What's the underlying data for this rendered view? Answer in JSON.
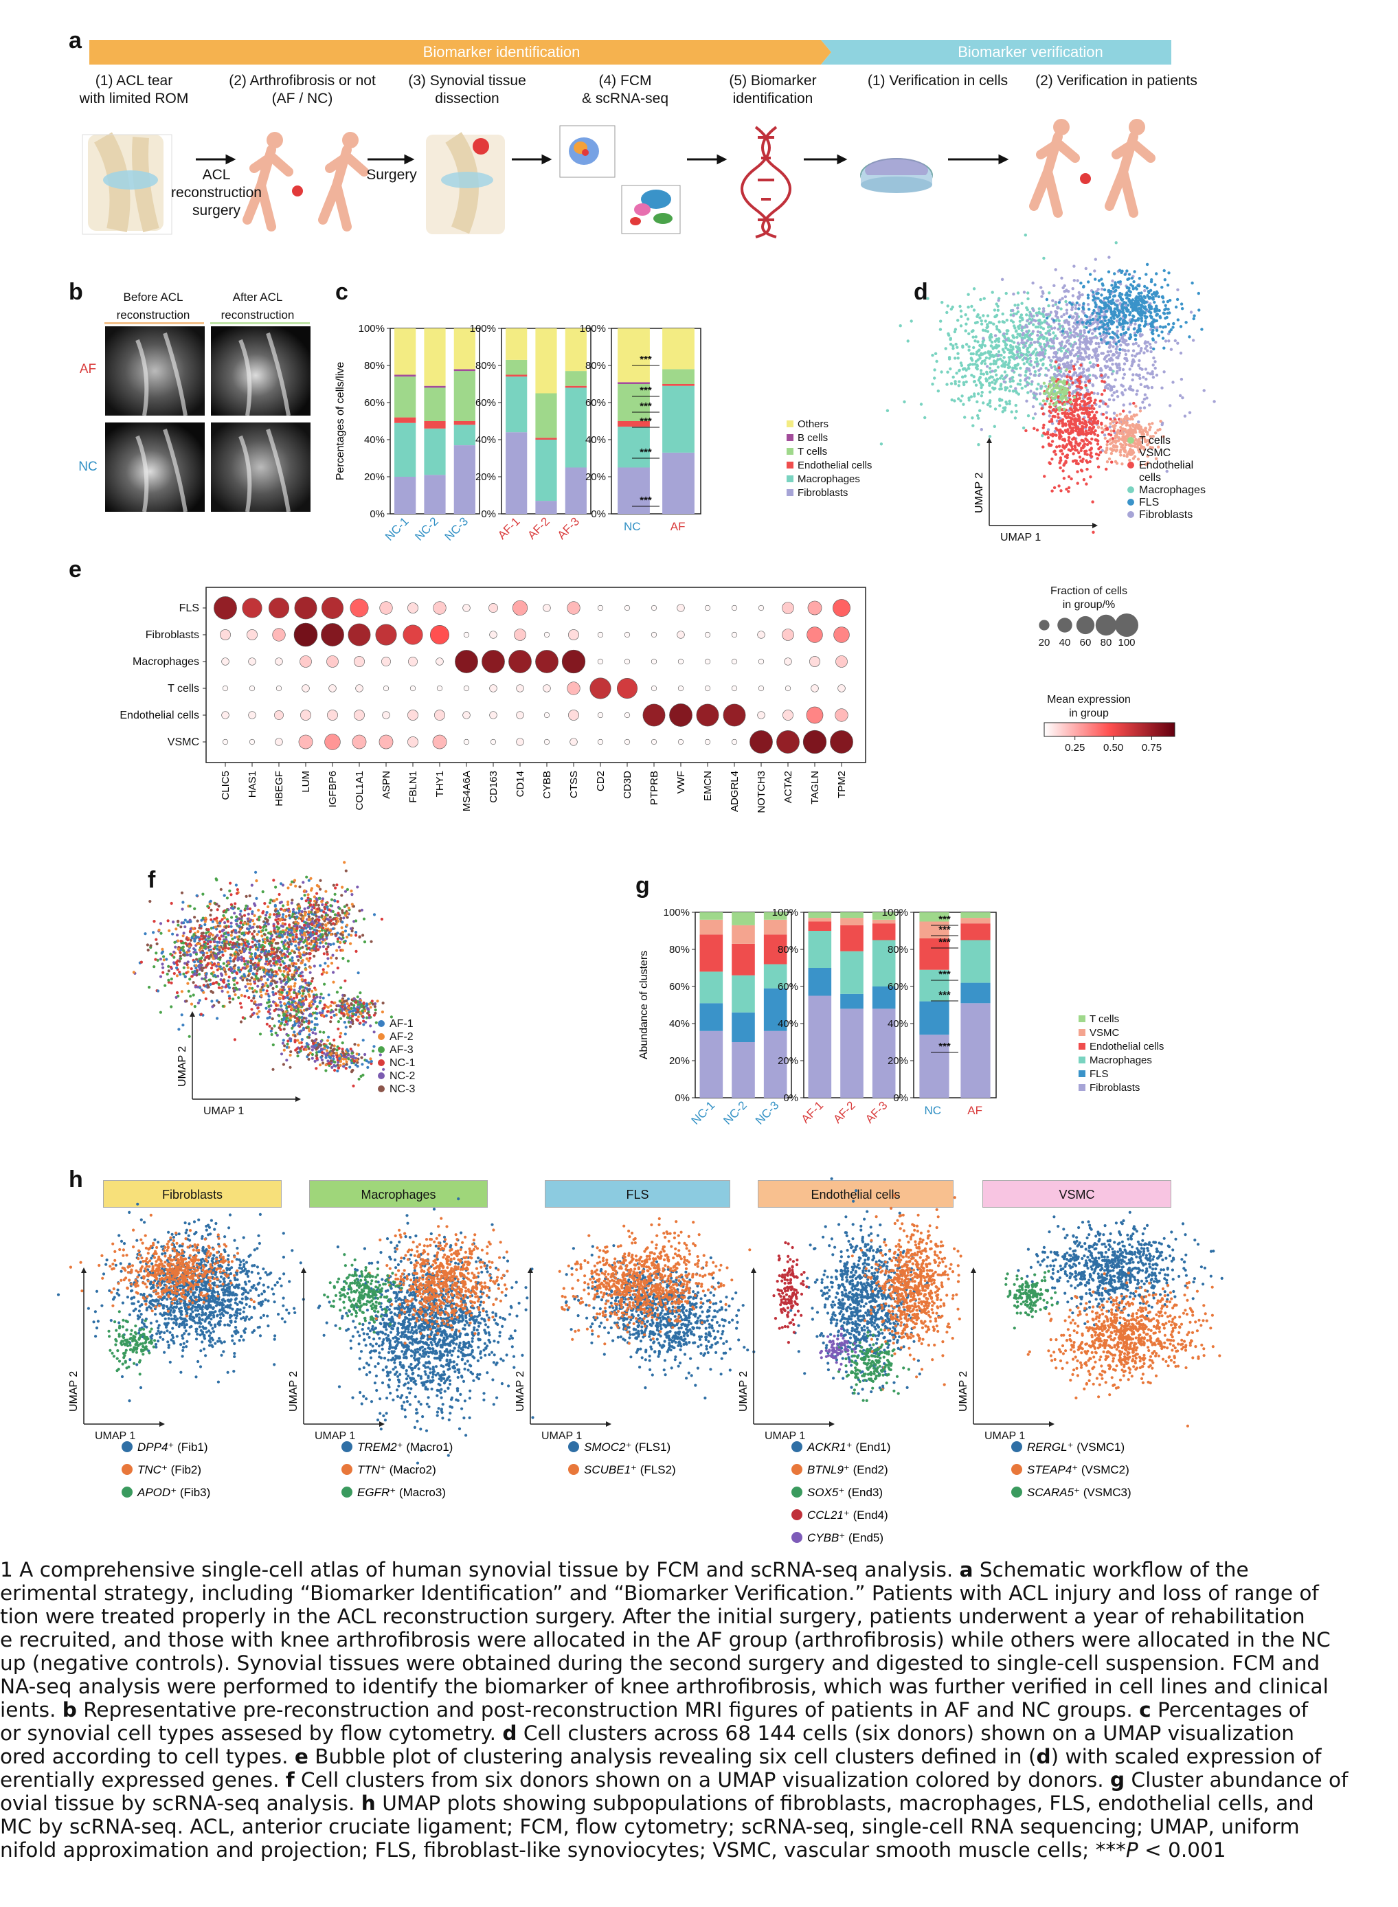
{
  "panel_a": {
    "letter": "a",
    "bar_left": "Biomarker identification",
    "bar_right": "Biomarker verification",
    "steps": [
      {
        "line1": "(1) ACL tear",
        "line2": "with limited ROM"
      },
      {
        "line1": "(2) Arthrofibrosis or not",
        "line2": "(AF / NC)"
      },
      {
        "line1": "(3) Synovial tissue",
        "line2": "dissection"
      },
      {
        "line1": "(4) FCM",
        "line2": "& scRNA-seq"
      },
      {
        "line1": "(5) Biomarker",
        "line2": "identification"
      },
      {
        "line1": "(1) Verification in cells",
        "line2": ""
      },
      {
        "line1": "(2) Verification in patients",
        "line2": ""
      }
    ],
    "arrow1_text": [
      "ACL",
      "reconstruction",
      "surgery"
    ],
    "arrow2_text": "Surgery",
    "colors": {
      "left": "#f5b24f",
      "right": "#8fd3df"
    }
  },
  "panel_b": {
    "letter": "b",
    "col1": [
      "Before ACL",
      "reconstruction"
    ],
    "col2": [
      "After ACL",
      "reconstruction"
    ],
    "row1": "AF",
    "row2": "NC"
  },
  "panel_c": {
    "letter": "c",
    "ylabel": "Percentages of cells/live",
    "yticks": [
      "0%",
      "20%",
      "40%",
      "60%",
      "80%",
      "100%"
    ],
    "legend": [
      "Others",
      "B cells",
      "T cells",
      "Endothelial cells",
      "Macrophages",
      "Fibroblasts"
    ],
    "sig": "***",
    "colors": [
      "#f3ec83",
      "#a24c9a",
      "#9fd88b",
      "#ef4d4d",
      "#79d3c0",
      "#a6a4d6"
    ]
  },
  "chart_data": [
    {
      "type": "bar",
      "title": "",
      "ylabel": "Percentages of cells/live",
      "ylim": [
        0,
        100
      ],
      "stacked": true,
      "groups": [
        {
          "categories": [
            "NC-1",
            "NC-2",
            "NC-3"
          ],
          "series": [
            {
              "name": "Fibroblasts",
              "values": [
                20,
                21,
                37
              ]
            },
            {
              "name": "Macrophages",
              "values": [
                29,
                25,
                11
              ]
            },
            {
              "name": "Endothelial cells",
              "values": [
                3,
                4,
                2
              ]
            },
            {
              "name": "T cells",
              "values": [
                22,
                18,
                27
              ]
            },
            {
              "name": "B cells",
              "values": [
                1,
                1,
                1
              ]
            },
            {
              "name": "Others",
              "values": [
                25,
                31,
                22
              ]
            }
          ]
        },
        {
          "categories": [
            "AF-1",
            "AF-2",
            "AF-3"
          ],
          "series": [
            {
              "name": "Fibroblasts",
              "values": [
                44,
                7,
                25
              ]
            },
            {
              "name": "Macrophages",
              "values": [
                30,
                33,
                43
              ]
            },
            {
              "name": "Endothelial cells",
              "values": [
                1,
                1,
                1
              ]
            },
            {
              "name": "T cells",
              "values": [
                8,
                24,
                8
              ]
            },
            {
              "name": "B cells",
              "values": [
                0,
                0,
                0
              ]
            },
            {
              "name": "Others",
              "values": [
                17,
                35,
                23
              ]
            }
          ]
        },
        {
          "categories": [
            "NC",
            "AF"
          ],
          "series": [
            {
              "name": "Fibroblasts",
              "values": [
                25,
                33
              ]
            },
            {
              "name": "Macrophages",
              "values": [
                22,
                36
              ]
            },
            {
              "name": "Endothelial cells",
              "values": [
                3,
                1
              ]
            },
            {
              "name": "T cells",
              "values": [
                20,
                8
              ]
            },
            {
              "name": "B cells",
              "values": [
                1,
                0
              ]
            },
            {
              "name": "Others",
              "values": [
                29,
                22
              ]
            }
          ]
        }
      ]
    },
    {
      "type": "scatter",
      "title": "",
      "subtype": "bubble",
      "rows": [
        "FLS",
        "Fibroblasts",
        "Macrophages",
        "T cells",
        "Endothelial cells",
        "VSMC"
      ],
      "genes": [
        "CLIC5",
        "HAS1",
        "HBEGF",
        "LUM",
        "IGFBP6",
        "COL1A1",
        "ASPN",
        "FBLN1",
        "THY1",
        "MS4A6A",
        "CD163",
        "CD14",
        "CYBB",
        "CTSS",
        "CD2",
        "CD3D",
        "PTPRB",
        "VWF",
        "EMCN",
        "ADGRL4",
        "NOTCH3",
        "ACTA2",
        "TAGLN",
        "TPM2"
      ],
      "size_legend_title": [
        "Fraction of cells",
        "in group/%"
      ],
      "size_legend": [
        20,
        40,
        60,
        80,
        100
      ],
      "color_legend_title": [
        "Mean expression",
        "in group"
      ],
      "color_ticks": [
        0.25,
        0.5,
        0.75
      ],
      "expression": [
        [
          0.85,
          0.7,
          0.75,
          0.8,
          0.75,
          0.45,
          0.15,
          0.1,
          0.15,
          0.05,
          0.1,
          0.25,
          0.05,
          0.2,
          0.02,
          0.02,
          0.02,
          0.05,
          0.02,
          0.02,
          0.02,
          0.15,
          0.25,
          0.45
        ],
        [
          0.1,
          0.1,
          0.2,
          0.95,
          0.9,
          0.8,
          0.7,
          0.6,
          0.5,
          0.02,
          0.05,
          0.15,
          0.02,
          0.1,
          0.02,
          0.02,
          0.02,
          0.05,
          0.02,
          0.02,
          0.05,
          0.15,
          0.35,
          0.35
        ],
        [
          0.05,
          0.05,
          0.05,
          0.15,
          0.15,
          0.1,
          0.08,
          0.08,
          0.05,
          0.9,
          0.88,
          0.85,
          0.85,
          0.9,
          0.02,
          0.02,
          0.02,
          0.02,
          0.02,
          0.02,
          0.02,
          0.05,
          0.1,
          0.15
        ],
        [
          0.02,
          0.02,
          0.02,
          0.05,
          0.05,
          0.05,
          0.02,
          0.02,
          0.02,
          0.02,
          0.05,
          0.05,
          0.05,
          0.2,
          0.7,
          0.65,
          0.02,
          0.02,
          0.02,
          0.02,
          0.02,
          0.02,
          0.05,
          0.05
        ],
        [
          0.05,
          0.05,
          0.1,
          0.1,
          0.1,
          0.1,
          0.05,
          0.1,
          0.1,
          0.05,
          0.05,
          0.05,
          0.02,
          0.1,
          0.02,
          0.02,
          0.85,
          0.9,
          0.85,
          0.85,
          0.05,
          0.1,
          0.35,
          0.2
        ],
        [
          0.02,
          0.02,
          0.05,
          0.2,
          0.3,
          0.2,
          0.2,
          0.1,
          0.2,
          0.02,
          0.02,
          0.05,
          0.02,
          0.05,
          0.02,
          0.02,
          0.02,
          0.02,
          0.02,
          0.02,
          0.9,
          0.85,
          0.92,
          0.9
        ]
      ],
      "fraction": [
        [
          95,
          70,
          75,
          90,
          85,
          60,
          30,
          20,
          30,
          10,
          15,
          40,
          10,
          30,
          5,
          5,
          5,
          10,
          5,
          5,
          5,
          25,
          35,
          55
        ],
        [
          20,
          20,
          30,
          100,
          95,
          90,
          80,
          70,
          65,
          5,
          10,
          25,
          5,
          20,
          5,
          5,
          5,
          10,
          5,
          5,
          10,
          25,
          45,
          45
        ],
        [
          10,
          10,
          10,
          25,
          25,
          20,
          15,
          15,
          10,
          95,
          95,
          95,
          95,
          98,
          5,
          5,
          5,
          5,
          5,
          5,
          5,
          10,
          20,
          25
        ],
        [
          5,
          5,
          5,
          10,
          10,
          10,
          5,
          5,
          5,
          5,
          10,
          10,
          10,
          30,
          80,
          75,
          5,
          5,
          5,
          5,
          5,
          5,
          10,
          10
        ],
        [
          10,
          10,
          15,
          20,
          20,
          20,
          10,
          20,
          20,
          10,
          10,
          10,
          5,
          20,
          5,
          5,
          90,
          95,
          90,
          90,
          10,
          20,
          50,
          30
        ],
        [
          5,
          5,
          10,
          35,
          45,
          35,
          35,
          20,
          35,
          5,
          5,
          10,
          5,
          10,
          5,
          5,
          5,
          5,
          5,
          5,
          95,
          95,
          98,
          95
        ]
      ]
    },
    {
      "type": "bar",
      "title": "",
      "ylabel": "Abundance of clusters",
      "ylim": [
        0,
        100
      ],
      "stacked": true,
      "groups": [
        {
          "categories": [
            "NC-1",
            "NC-2",
            "NC-3"
          ],
          "series": [
            {
              "name": "Fibroblasts",
              "values": [
                36,
                30,
                36
              ]
            },
            {
              "name": "FLS",
              "values": [
                15,
                16,
                23
              ]
            },
            {
              "name": "Macrophages",
              "values": [
                17,
                20,
                13
              ]
            },
            {
              "name": "Endothelial cells",
              "values": [
                20,
                17,
                16
              ]
            },
            {
              "name": "VSMC",
              "values": [
                8,
                10,
                8
              ]
            },
            {
              "name": "T cells",
              "values": [
                4,
                7,
                4
              ]
            }
          ]
        },
        {
          "categories": [
            "AF-1",
            "AF-2",
            "AF-3"
          ],
          "series": [
            {
              "name": "Fibroblasts",
              "values": [
                55,
                48,
                48
              ]
            },
            {
              "name": "FLS",
              "values": [
                15,
                8,
                12
              ]
            },
            {
              "name": "Macrophages",
              "values": [
                20,
                23,
                25
              ]
            },
            {
              "name": "Endothelial cells",
              "values": [
                5,
                14,
                9
              ]
            },
            {
              "name": "VSMC",
              "values": [
                2,
                4,
                2
              ]
            },
            {
              "name": "T cells",
              "values": [
                3,
                3,
                4
              ]
            }
          ]
        },
        {
          "categories": [
            "NC",
            "AF"
          ],
          "series": [
            {
              "name": "Fibroblasts",
              "values": [
                34,
                51
              ]
            },
            {
              "name": "FLS",
              "values": [
                18,
                11
              ]
            },
            {
              "name": "Macrophages",
              "values": [
                17,
                23
              ]
            },
            {
              "name": "Endothelial cells",
              "values": [
                17,
                9
              ]
            },
            {
              "name": "VSMC",
              "values": [
                9,
                3
              ]
            },
            {
              "name": "T cells",
              "values": [
                5,
                3
              ]
            }
          ]
        }
      ]
    }
  ],
  "panel_d": {
    "letter": "d",
    "xlabel": "UMAP 1",
    "ylabel": "UMAP 2",
    "legend": [
      "T cells",
      "VSMC",
      "Endothelial",
      "cells",
      "Macrophages",
      "FLS",
      "Fibroblasts"
    ],
    "colors": {
      "T cells": "#9fd88b",
      "VSMC": "#f4a48f",
      "Endothelial": "#ef4d4d",
      "Macrophages": "#79d3c0",
      "FLS": "#3a93c9",
      "Fibroblasts": "#a6a4d6"
    }
  },
  "panel_e": {
    "letter": "e"
  },
  "panel_f": {
    "letter": "f",
    "xlabel": "UMAP 1",
    "ylabel": "UMAP 2",
    "legend": [
      "AF-1",
      "AF-2",
      "AF-3",
      "NC-1",
      "NC-2",
      "NC-3"
    ],
    "colors": [
      "#3a7fc1",
      "#f08a36",
      "#4aa34a",
      "#d93b3b",
      "#7b5bb0",
      "#8c564b"
    ]
  },
  "panel_g": {
    "letter": "g",
    "ylabel": "Abundance of clusters",
    "yticks": [
      "0%",
      "20%",
      "40%",
      "60%",
      "80%",
      "100%"
    ],
    "legend": [
      "T cells",
      "VSMC",
      "Endothelial cells",
      "Macrophages",
      "FLS",
      "Fibroblasts"
    ],
    "colors": [
      "#9fd88b",
      "#f4a48f",
      "#ef4d4d",
      "#79d3c0",
      "#3a93c9",
      "#a6a4d6"
    ],
    "sig": "***"
  },
  "panel_h": {
    "letter": "h",
    "xlabel": "UMAP 1",
    "ylabel": "UMAP 2",
    "groups": [
      {
        "title": "Fibroblasts",
        "color": "#f7e07a",
        "legend": [
          [
            "DPP4",
            "⁺ (Fib1)"
          ],
          [
            "TNC",
            "⁺ (Fib2)"
          ],
          [
            "APOD",
            "⁺ (Fib3)"
          ]
        ]
      },
      {
        "title": "Macrophages",
        "color": "#9fd67a",
        "legend": [
          [
            "TREM2",
            "⁺ (Macro1)"
          ],
          [
            "TTN",
            "⁺ (Macro2)"
          ],
          [
            "EGFR",
            "⁺ (Macro3)"
          ]
        ]
      },
      {
        "title": "FLS",
        "color": "#8ccbe0",
        "legend": [
          [
            "SMOC2",
            "⁺ (FLS1)"
          ],
          [
            "SCUBE1",
            "⁺ (FLS2)"
          ]
        ]
      },
      {
        "title": "Endothelial cells",
        "color": "#f8c08f",
        "legend": [
          [
            "ACKR1",
            "⁺ (End1)"
          ],
          [
            "BTNL9",
            "⁺ (End2)"
          ],
          [
            "SOX5",
            "⁺ (End3)"
          ],
          [
            "CCL21",
            "⁺ (End4)"
          ],
          [
            "CYBB",
            "⁺ (End5)"
          ]
        ]
      },
      {
        "title": "VSMC",
        "color": "#f8c5e2",
        "legend": [
          [
            "RERGL",
            "⁺ (VSMC1)"
          ],
          [
            "STEAP4",
            "⁺ (VSMC2)"
          ],
          [
            "SCARA5",
            "⁺ (VSMC3)"
          ]
        ]
      }
    ],
    "dot_colors": [
      "#2f6fa5",
      "#e8773a",
      "#3a9a5e",
      "#c0303a",
      "#7d5bb8"
    ]
  },
  "caption": {
    "lines": [
      {
        "pre": "1  A comprehensive single-cell atlas of human synovial tissue by FCM and scRNA-seq analysis. ",
        "b": "a",
        "post": " Schematic workflow of the"
      },
      {
        "pre": "erimental strategy, including “Biomarker Identification” and “Biomarker Verification.” Patients with ACL injury and loss of range of",
        "b": "",
        "post": ""
      },
      {
        "pre": "tion were treated properly in the ACL reconstruction surgery. After the initial surgery, patients underwent a year of rehabilitation",
        "b": "",
        "post": ""
      },
      {
        "pre": "e recruited, and those with knee arthrofibrosis were allocated in the AF group (arthrofibrosis) while others were allocated in the NC",
        "b": "",
        "post": ""
      },
      {
        "pre": "up (negative controls). Synovial tissues were obtained during the second surgery and digested to single-cell suspension. FCM and",
        "b": "",
        "post": ""
      },
      {
        "pre": "NA-seq analysis were performed to identify the biomarker of knee arthrofibrosis, which was further verified in cell lines and clinical",
        "b": "",
        "post": ""
      },
      {
        "pre": "ients. ",
        "b": "b",
        "post": " Representative pre-reconstruction and post-reconstruction MRI figures of patients in AF and NC groups. "
      },
      {
        "pre": "or synovial cell types assesed by flow cytometry. ",
        "b": "d",
        "post": " Cell clusters across 68 144 cells (six donors) shown on a UMAP visualization"
      },
      {
        "pre": "ored according to cell types. ",
        "b": "e",
        "post": " Bubble plot of clustering analysis revealing six cell clusters defined in ("
      },
      {
        "pre": "erentially expressed genes. ",
        "b": "f",
        "post": " Cell clusters from six donors shown on a UMAP visualization colored by donors. "
      },
      {
        "pre": "ovial tissue by scRNA-seq analysis. ",
        "b": "h",
        "post": " UMAP plots showing subpopulations of fibroblasts, macrophages, FLS, endothelial cells, and"
      },
      {
        "pre": "MC by scRNA-seq. ACL, anterior cruciate ligament; FCM, flow cytometry; scRNA-seq, single-cell RNA sequencing; UMAP, uniform",
        "b": "",
        "post": ""
      },
      {
        "pre": "nifold approximation and projection; FLS, fibroblast-like synoviocytes; VSMC, vascular smooth muscle cells; ***",
        "b": "",
        "post": ""
      }
    ],
    "line7_tail_b": "c",
    "line7_tail": " Percentages of",
    "line9_mid_b": "d",
    "line9_tail": ") with scaled expression of",
    "line10_tail_b": "g",
    "line10_tail": " Cluster abundance of",
    "line13_p": "P",
    "line13_tail": " < 0.001"
  }
}
